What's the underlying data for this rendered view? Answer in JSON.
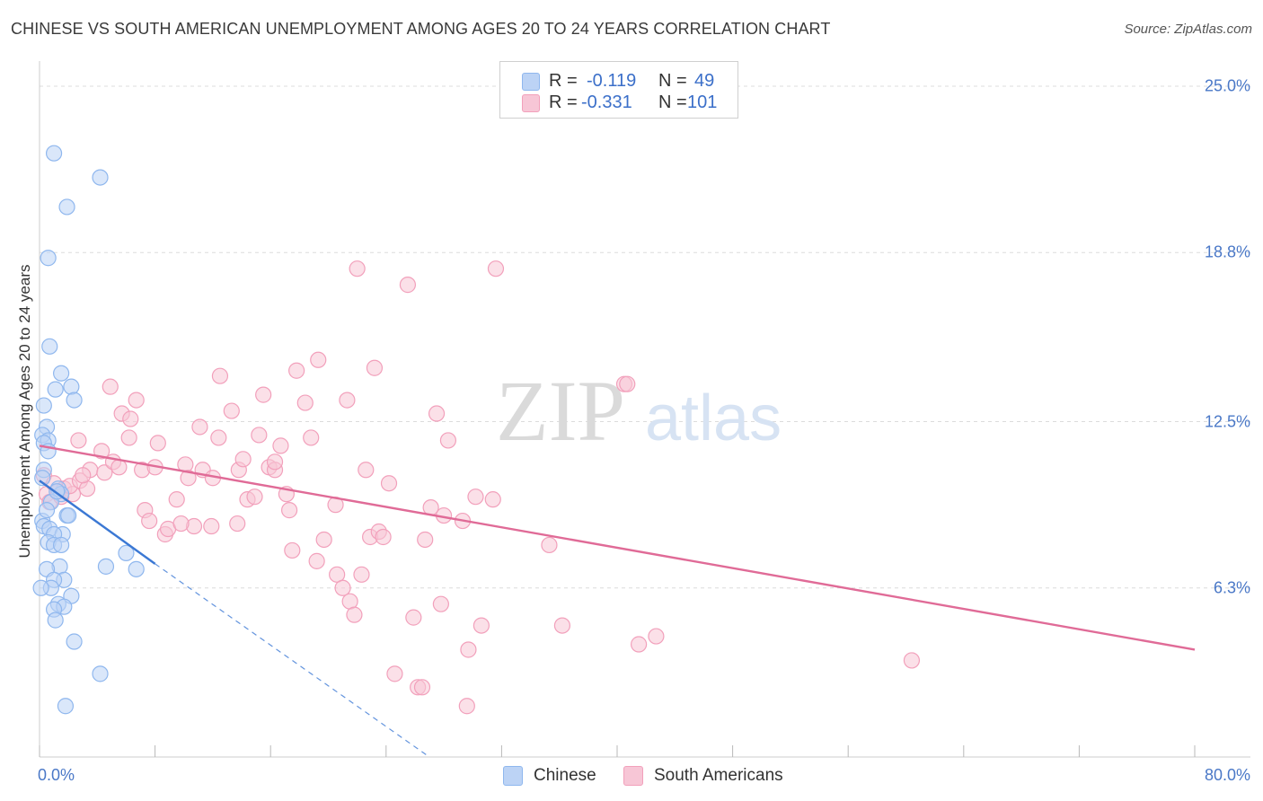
{
  "chart_data": {
    "type": "scatter",
    "title": "CHINESE VS SOUTH AMERICAN UNEMPLOYMENT AMONG AGES 20 TO 24 YEARS CORRELATION CHART",
    "source": "Source: ZipAtlas.com",
    "ylabel": "Unemployment Among Ages 20 to 24 years",
    "xlim": [
      0,
      80
    ],
    "ylim": [
      0,
      25.7
    ],
    "x_ticks_labels": [
      "0.0%",
      "80.0%"
    ],
    "y_ticks": [
      6.3,
      12.5,
      18.8,
      25.0
    ],
    "y_ticks_labels": [
      "6.3%",
      "12.5%",
      "18.8%",
      "25.0%"
    ],
    "watermark": {
      "a": "ZIP",
      "b": "atlas"
    },
    "stats": [
      {
        "r_label": "R =",
        "r": "-0.119",
        "n_label": "N =",
        "n": "49"
      },
      {
        "r_label": "R =",
        "r": "-0.331",
        "n_label": "N =",
        "n": "101"
      }
    ],
    "series": [
      {
        "name": "Chinese",
        "color": "#8fb7ee",
        "fill": "#bcd3f5",
        "line_color": "#3b78d4",
        "trend": {
          "x0": 0,
          "y0": 10.3,
          "x1": 8,
          "y1": 7.2,
          "dash_to_x": 27,
          "dash_to_y": 0
        },
        "points": [
          [
            1.0,
            22.5
          ],
          [
            4.2,
            21.6
          ],
          [
            1.9,
            20.5
          ],
          [
            0.6,
            18.6
          ],
          [
            0.7,
            15.3
          ],
          [
            1.5,
            14.3
          ],
          [
            1.1,
            13.7
          ],
          [
            2.2,
            13.8
          ],
          [
            2.4,
            13.3
          ],
          [
            0.3,
            13.1
          ],
          [
            0.5,
            12.3
          ],
          [
            0.2,
            12.0
          ],
          [
            0.6,
            11.8
          ],
          [
            0.3,
            11.7
          ],
          [
            0.6,
            11.4
          ],
          [
            0.3,
            10.7
          ],
          [
            0.2,
            10.4
          ],
          [
            1.3,
            10.0
          ],
          [
            1.5,
            9.8
          ],
          [
            0.8,
            9.5
          ],
          [
            1.9,
            9.0
          ],
          [
            2.0,
            9.0
          ],
          [
            0.2,
            8.8
          ],
          [
            0.3,
            8.6
          ],
          [
            0.7,
            8.5
          ],
          [
            1.6,
            8.3
          ],
          [
            1.0,
            8.3
          ],
          [
            0.6,
            8.0
          ],
          [
            1.0,
            7.9
          ],
          [
            1.5,
            7.9
          ],
          [
            6.0,
            7.6
          ],
          [
            4.6,
            7.1
          ],
          [
            6.7,
            7.0
          ],
          [
            1.4,
            7.1
          ],
          [
            0.5,
            7.0
          ],
          [
            1.7,
            6.6
          ],
          [
            1.0,
            6.6
          ],
          [
            0.8,
            6.3
          ],
          [
            2.2,
            6.0
          ],
          [
            1.3,
            5.7
          ],
          [
            1.7,
            5.6
          ],
          [
            1.0,
            5.5
          ],
          [
            1.1,
            5.1
          ],
          [
            2.4,
            4.3
          ],
          [
            4.2,
            3.1
          ],
          [
            1.8,
            1.9
          ],
          [
            0.1,
            6.3
          ],
          [
            0.5,
            9.2
          ],
          [
            1.2,
            9.9
          ]
        ]
      },
      {
        "name": "South Americans",
        "color": "#f2a0bb",
        "fill": "#f7c6d6",
        "line_color": "#e06b97",
        "trend": {
          "x0": 0,
          "y0": 11.6,
          "x1": 80,
          "y1": 4.0
        },
        "points": [
          [
            0.3,
            10.5
          ],
          [
            0.5,
            9.8
          ],
          [
            1.0,
            10.2
          ],
          [
            1.3,
            9.9
          ],
          [
            1.7,
            10.0
          ],
          [
            0.7,
            9.5
          ],
          [
            2.3,
            9.8
          ],
          [
            1.5,
            9.7
          ],
          [
            2.1,
            10.1
          ],
          [
            2.8,
            10.3
          ],
          [
            3.3,
            10.0
          ],
          [
            3.5,
            10.7
          ],
          [
            3.0,
            10.5
          ],
          [
            2.7,
            11.8
          ],
          [
            4.3,
            11.4
          ],
          [
            4.5,
            10.6
          ],
          [
            5.1,
            11.0
          ],
          [
            5.5,
            10.8
          ],
          [
            6.2,
            11.9
          ],
          [
            5.7,
            12.8
          ],
          [
            6.3,
            12.6
          ],
          [
            6.7,
            13.3
          ],
          [
            4.9,
            13.8
          ],
          [
            7.1,
            10.7
          ],
          [
            8.0,
            10.8
          ],
          [
            8.2,
            11.7
          ],
          [
            7.3,
            9.2
          ],
          [
            7.6,
            8.8
          ],
          [
            8.7,
            8.3
          ],
          [
            8.9,
            8.5
          ],
          [
            9.5,
            9.6
          ],
          [
            10.1,
            10.9
          ],
          [
            10.3,
            10.4
          ],
          [
            10.7,
            8.6
          ],
          [
            9.8,
            8.7
          ],
          [
            11.1,
            12.3
          ],
          [
            11.3,
            10.7
          ],
          [
            11.9,
            8.6
          ],
          [
            12.0,
            10.4
          ],
          [
            12.4,
            11.9
          ],
          [
            12.5,
            14.2
          ],
          [
            13.3,
            12.9
          ],
          [
            13.8,
            10.7
          ],
          [
            13.7,
            8.7
          ],
          [
            14.1,
            11.1
          ],
          [
            14.4,
            9.6
          ],
          [
            14.9,
            9.7
          ],
          [
            15.2,
            12.0
          ],
          [
            15.5,
            13.5
          ],
          [
            15.9,
            10.8
          ],
          [
            16.3,
            10.7
          ],
          [
            16.3,
            11.0
          ],
          [
            16.7,
            11.6
          ],
          [
            17.1,
            9.8
          ],
          [
            17.3,
            9.2
          ],
          [
            17.5,
            7.7
          ],
          [
            17.8,
            14.4
          ],
          [
            18.4,
            13.2
          ],
          [
            18.8,
            11.9
          ],
          [
            19.2,
            7.3
          ],
          [
            19.3,
            14.8
          ],
          [
            19.7,
            8.1
          ],
          [
            20.5,
            9.4
          ],
          [
            20.6,
            6.8
          ],
          [
            21.0,
            6.3
          ],
          [
            21.3,
            13.3
          ],
          [
            21.5,
            5.8
          ],
          [
            21.8,
            5.3
          ],
          [
            22.0,
            18.2
          ],
          [
            22.3,
            6.8
          ],
          [
            22.6,
            10.7
          ],
          [
            22.9,
            8.2
          ],
          [
            23.2,
            14.5
          ],
          [
            23.5,
            8.4
          ],
          [
            23.8,
            8.2
          ],
          [
            24.2,
            10.2
          ],
          [
            24.6,
            3.1
          ],
          [
            25.5,
            17.6
          ],
          [
            25.9,
            5.2
          ],
          [
            26.2,
            2.6
          ],
          [
            26.5,
            2.6
          ],
          [
            26.7,
            8.1
          ],
          [
            27.1,
            9.3
          ],
          [
            27.5,
            12.8
          ],
          [
            27.8,
            5.7
          ],
          [
            28.0,
            9.0
          ],
          [
            28.3,
            11.8
          ],
          [
            29.3,
            8.8
          ],
          [
            29.7,
            4.0
          ],
          [
            29.6,
            1.9
          ],
          [
            30.2,
            9.7
          ],
          [
            30.6,
            4.9
          ],
          [
            31.4,
            9.6
          ],
          [
            31.6,
            18.2
          ],
          [
            35.3,
            7.9
          ],
          [
            36.2,
            4.9
          ],
          [
            40.5,
            13.9
          ],
          [
            40.7,
            13.9
          ],
          [
            41.5,
            4.2
          ],
          [
            42.7,
            4.5
          ],
          [
            60.4,
            3.6
          ]
        ]
      }
    ]
  },
  "legend": [
    {
      "label": "Chinese"
    },
    {
      "label": "South Americans"
    }
  ]
}
